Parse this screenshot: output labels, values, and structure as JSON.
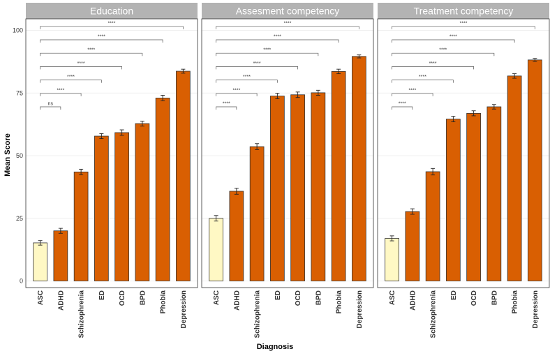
{
  "chart_data": {
    "type": "bar",
    "xlabel": "Diagnosis",
    "ylabel": "Mean Score",
    "ylim": [
      0,
      100
    ],
    "yticks": [
      "0",
      "25",
      "50",
      "75",
      "100"
    ],
    "categories": [
      "ASC",
      "ADHD",
      "Schizophrenia",
      "ED",
      "OCD",
      "BPD",
      "Phobia",
      "Depression"
    ],
    "colors": {
      "highlight": "#FFF8C4",
      "bar": "#D95F02",
      "strip": "#B3B3B3",
      "grid": "#EBEBEB",
      "border": "#333333"
    },
    "panels": [
      {
        "title": "Education",
        "values": [
          15.2,
          20.0,
          43.5,
          57.8,
          59.2,
          62.8,
          73.0,
          83.7
        ],
        "errors": [
          0.9,
          1.0,
          1.1,
          1.0,
          1.1,
          1.0,
          1.1,
          0.8
        ],
        "comparisons": [
          {
            "label": "ns",
            "target": "ADHD"
          },
          {
            "label": "****",
            "target": "Schizophrenia"
          },
          {
            "label": "****",
            "target": "ED"
          },
          {
            "label": "****",
            "target": "OCD"
          },
          {
            "label": "****",
            "target": "BPD"
          },
          {
            "label": "****",
            "target": "Phobia"
          },
          {
            "label": "****",
            "target": "Depression"
          }
        ]
      },
      {
        "title": "Assesment competency",
        "values": [
          25.0,
          35.8,
          53.6,
          73.8,
          74.3,
          75.1,
          83.6,
          89.6
        ],
        "errors": [
          1.1,
          1.2,
          1.2,
          1.1,
          1.1,
          1.0,
          0.9,
          0.6
        ],
        "comparisons": [
          {
            "label": "****",
            "target": "ADHD"
          },
          {
            "label": "****",
            "target": "Schizophrenia"
          },
          {
            "label": "****",
            "target": "ED"
          },
          {
            "label": "****",
            "target": "OCD"
          },
          {
            "label": "****",
            "target": "BPD"
          },
          {
            "label": "****",
            "target": "Phobia"
          },
          {
            "label": "****",
            "target": "Depression"
          }
        ]
      },
      {
        "title": "Treatment competency",
        "values": [
          17.0,
          27.7,
          43.6,
          64.6,
          66.9,
          69.5,
          81.8,
          88.2
        ],
        "errors": [
          1.0,
          1.1,
          1.3,
          1.1,
          1.0,
          0.9,
          0.9,
          0.6
        ],
        "comparisons": [
          {
            "label": "****",
            "target": "ADHD"
          },
          {
            "label": "****",
            "target": "Schizophrenia"
          },
          {
            "label": "****",
            "target": "ED"
          },
          {
            "label": "****",
            "target": "OCD"
          },
          {
            "label": "****",
            "target": "BPD"
          },
          {
            "label": "****",
            "target": "Phobia"
          },
          {
            "label": "****",
            "target": "Depression"
          }
        ]
      }
    ]
  }
}
